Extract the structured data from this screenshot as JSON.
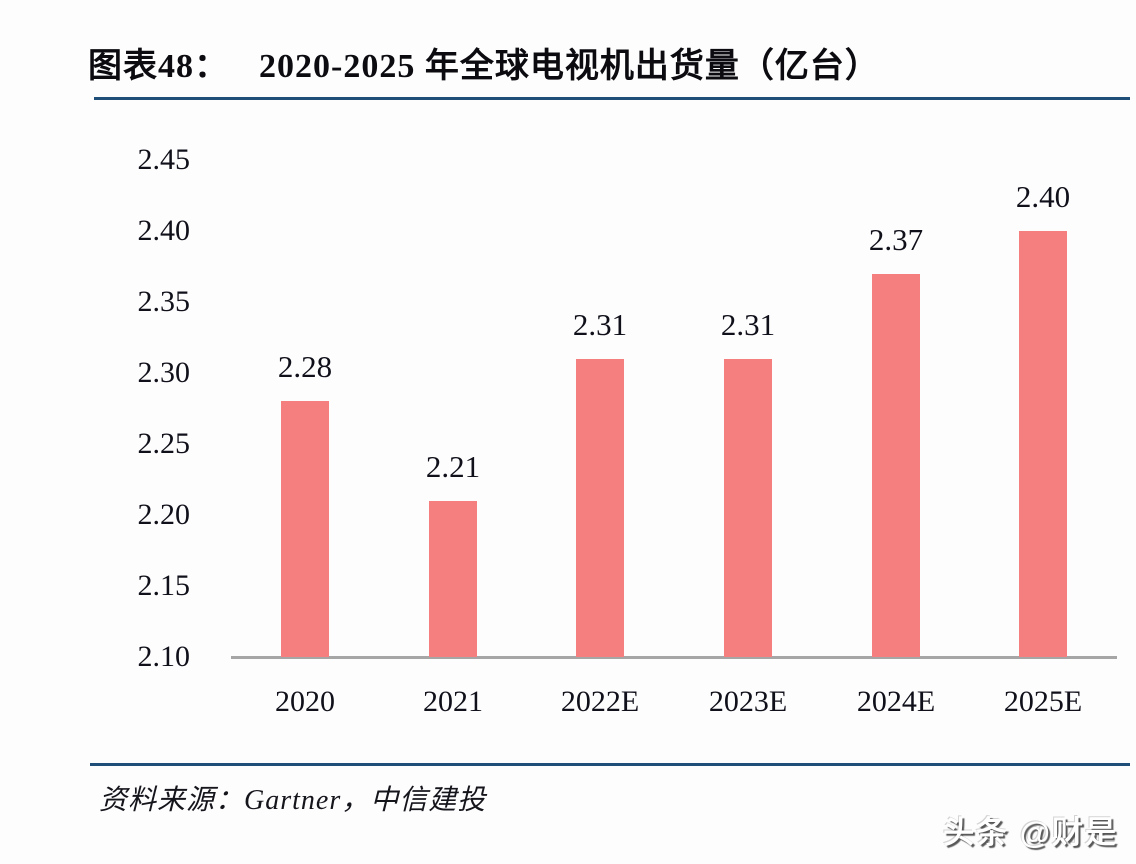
{
  "header": {
    "figure_label": "图表48：",
    "title": "2020-2025 年全球电视机出货量（亿台）"
  },
  "chart_data": {
    "type": "bar",
    "title": "2020-2025 年全球电视机出货量（亿台）",
    "categories": [
      "2020",
      "2021",
      "2022E",
      "2023E",
      "2024E",
      "2025E"
    ],
    "values": [
      2.28,
      2.21,
      2.31,
      2.31,
      2.37,
      2.4
    ],
    "data_labels": [
      "2.28",
      "2.21",
      "2.31",
      "2.31",
      "2.37",
      "2.40"
    ],
    "unit": "亿台",
    "xlabel": "",
    "ylabel": "",
    "ylim": [
      2.1,
      2.45
    ],
    "ytick_step": 0.05,
    "yticks": [
      "2.45",
      "2.40",
      "2.35",
      "2.30",
      "2.25",
      "2.20",
      "2.15",
      "2.10"
    ],
    "grid": false,
    "legend": false,
    "bar_color": "#F57F7F"
  },
  "footer": {
    "source": "资料来源：Gartner，中信建投"
  },
  "watermark": {
    "text": "头条 @财是"
  },
  "colors": {
    "accent_line": "#1F4E79",
    "axis_line": "#A6A6A6",
    "bar": "#F57F7F",
    "text": "#0B0B10"
  }
}
